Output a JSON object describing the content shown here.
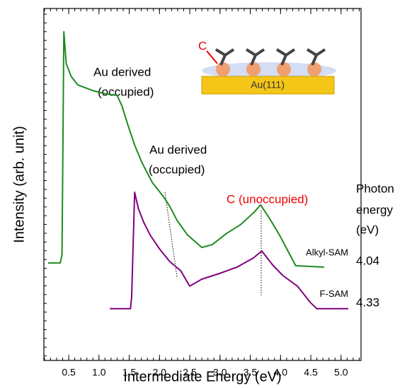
{
  "chart_data": {
    "type": "line",
    "xlabel": "Intermediate Energy (eV)",
    "ylabel": "Intensity (arb. unit)",
    "xlim": [
      0.09,
      5.33
    ],
    "ylim": [
      0,
      100
    ],
    "xticks": [
      0.5,
      {
        "value": 1,
        "label": "1.0"
      },
      1.5,
      {
        "value": 2,
        "label": "2.0"
      },
      2.5,
      {
        "value": 3,
        "label": "3.0"
      },
      3.5,
      {
        "value": 4,
        "label": "4.0"
      },
      4.5,
      {
        "value": 5,
        "label": "5.0"
      }
    ],
    "series": [
      {
        "name": "Alkyl-SAM",
        "color": "#1e8a1e",
        "photon_energy": 4.04,
        "x": [
          0.16,
          0.36,
          0.39,
          0.42,
          0.46,
          0.54,
          0.65,
          0.89,
          1.12,
          1.3,
          1.38,
          1.47,
          1.59,
          1.71,
          1.88,
          2.08,
          2.17,
          2.29,
          2.46,
          2.7,
          2.87,
          3.11,
          3.34,
          3.57,
          3.67,
          3.81,
          3.98,
          4.14,
          4.25,
          4.72
        ],
        "values": [
          27.7,
          27.7,
          30.1,
          93.4,
          84.3,
          80.7,
          78.3,
          76.7,
          75.7,
          75.3,
          72.3,
          67.3,
          61.2,
          56.2,
          50.6,
          46.2,
          43.8,
          39.8,
          35.7,
          32.1,
          32.9,
          36.1,
          38.6,
          42.2,
          44.2,
          40.6,
          35.7,
          30.5,
          26.9,
          26.5
        ]
      },
      {
        "name": "F-SAM",
        "color": "#800080",
        "photon_energy": 4.33,
        "x": [
          1.18,
          1.52,
          1.54,
          1.59,
          1.65,
          1.74,
          1.85,
          2.0,
          2.17,
          2.35,
          2.5,
          2.7,
          2.99,
          3.28,
          3.55,
          3.69,
          3.87,
          4.04,
          4.28,
          4.49,
          4.6,
          5.12
        ],
        "values": [
          14.7,
          14.7,
          18.1,
          47.8,
          43.2,
          39.2,
          35.5,
          31.7,
          28.1,
          25.5,
          21.1,
          23.1,
          24.7,
          26.5,
          29.1,
          31.1,
          27.1,
          24.1,
          21.1,
          16.5,
          14.7,
          14.7
        ]
      }
    ],
    "annotations": {
      "au_derived_1": [
        "Au derived",
        "(occupied)"
      ],
      "au_derived_2": [
        "Au derived",
        "(occupied)"
      ],
      "c_unoccupied": "C (unoccupied)",
      "photon_energy": [
        "Photon",
        "energy",
        "(eV)"
      ],
      "inset_c": "C",
      "inset_substrate": "Au(111)"
    }
  }
}
